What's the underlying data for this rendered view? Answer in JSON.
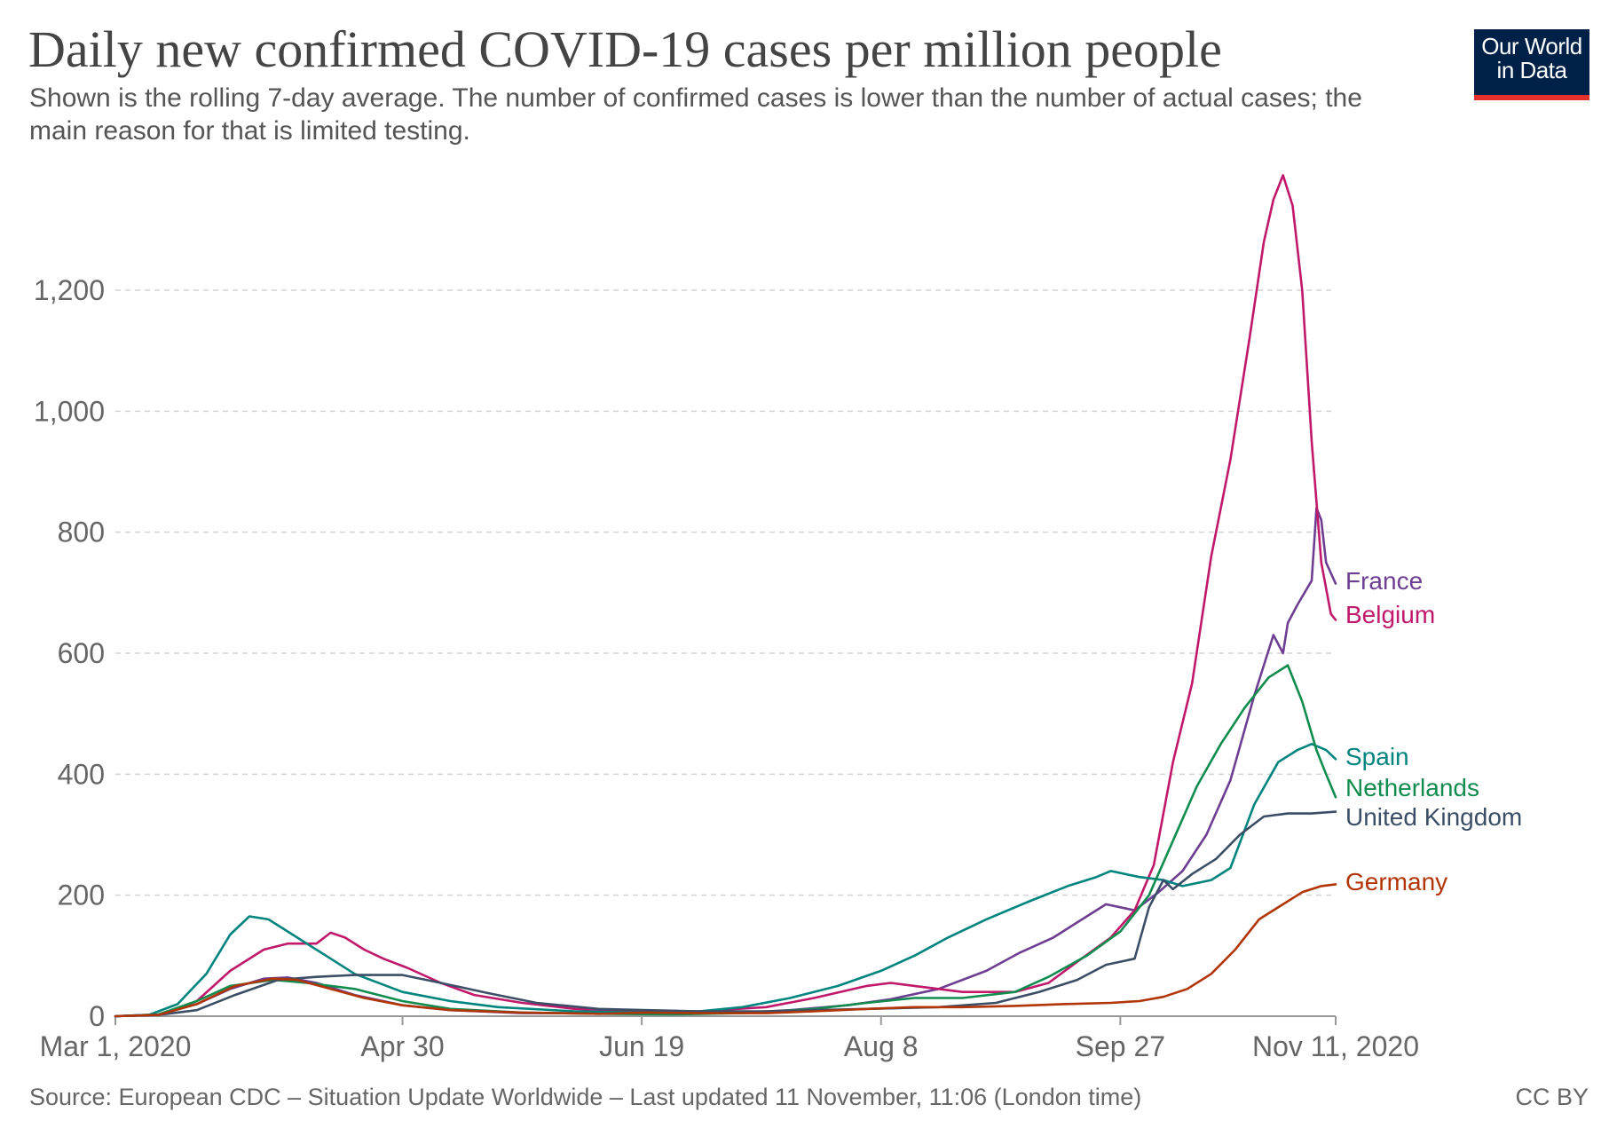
{
  "header": {
    "title": "Daily new confirmed COVID-19 cases per million people",
    "subtitle": "Shown is the rolling 7-day average. The number of confirmed cases is lower than the number of actual cases; the main reason for that is limited testing.",
    "logo_text": "Our World in Data"
  },
  "footer": {
    "source": "Source: European CDC – Situation Update Worldwide – Last updated 11 November, 11:06 (London time)",
    "license": "CC BY"
  },
  "colors": {
    "France": "#6d3e91",
    "Belgium": "#c0186a",
    "Spain": "#00847e",
    "Netherlands": "#118c4f",
    "United Kingdom": "#3c4e66",
    "Germany": "#b13507",
    "grid": "#d3d3d3",
    "axis": "#666666"
  },
  "chart_data": {
    "type": "line",
    "title": "Daily new confirmed COVID-19 cases per million people",
    "xlabel": "",
    "ylabel": "",
    "x_start": "2020-03-01",
    "x_end": "2020-11-11",
    "x_ticks": [
      "Mar 1, 2020",
      "Apr 30",
      "Jun 19",
      "Aug 8",
      "Sep 27",
      "Nov 11, 2020"
    ],
    "y_ticks": [
      "0",
      "200",
      "400",
      "600",
      "800",
      "1,000",
      "1,200"
    ],
    "ylim": [
      0,
      1400
    ],
    "grid": true,
    "legend": "inline labels at line ends (right)",
    "series": [
      {
        "name": "France",
        "points": [
          [
            "2020-03-01",
            0
          ],
          [
            "2020-03-10",
            3
          ],
          [
            "2020-03-18",
            20
          ],
          [
            "2020-03-25",
            45
          ],
          [
            "2020-04-01",
            62
          ],
          [
            "2020-04-06",
            64
          ],
          [
            "2020-04-12",
            55
          ],
          [
            "2020-04-20",
            35
          ],
          [
            "2020-04-30",
            18
          ],
          [
            "2020-05-10",
            10
          ],
          [
            "2020-05-25",
            5
          ],
          [
            "2020-06-10",
            5
          ],
          [
            "2020-06-25",
            4
          ],
          [
            "2020-07-10",
            6
          ],
          [
            "2020-07-20",
            10
          ],
          [
            "2020-08-01",
            18
          ],
          [
            "2020-08-10",
            28
          ],
          [
            "2020-08-20",
            45
          ],
          [
            "2020-08-30",
            75
          ],
          [
            "2020-09-06",
            105
          ],
          [
            "2020-09-13",
            130
          ],
          [
            "2020-09-20",
            165
          ],
          [
            "2020-09-24",
            185
          ],
          [
            "2020-09-30",
            175
          ],
          [
            "2020-10-05",
            205
          ],
          [
            "2020-10-10",
            240
          ],
          [
            "2020-10-15",
            300
          ],
          [
            "2020-10-20",
            390
          ],
          [
            "2020-10-25",
            530
          ],
          [
            "2020-10-29",
            630
          ],
          [
            "2020-10-31",
            600
          ],
          [
            "2020-11-01",
            650
          ],
          [
            "2020-11-03",
            680
          ],
          [
            "2020-11-06",
            720
          ],
          [
            "2020-11-07",
            840
          ],
          [
            "2020-11-08",
            820
          ],
          [
            "2020-11-09",
            750
          ],
          [
            "2020-11-11",
            715
          ]
        ]
      },
      {
        "name": "Belgium",
        "points": [
          [
            "2020-03-01",
            0
          ],
          [
            "2020-03-10",
            2
          ],
          [
            "2020-03-18",
            25
          ],
          [
            "2020-03-25",
            75
          ],
          [
            "2020-04-01",
            110
          ],
          [
            "2020-04-06",
            120
          ],
          [
            "2020-04-12",
            120
          ],
          [
            "2020-04-15",
            138
          ],
          [
            "2020-04-18",
            130
          ],
          [
            "2020-04-22",
            110
          ],
          [
            "2020-04-26",
            95
          ],
          [
            "2020-05-01",
            80
          ],
          [
            "2020-05-08",
            55
          ],
          [
            "2020-05-15",
            35
          ],
          [
            "2020-05-25",
            22
          ],
          [
            "2020-06-05",
            12
          ],
          [
            "2020-06-20",
            8
          ],
          [
            "2020-07-01",
            8
          ],
          [
            "2020-07-15",
            15
          ],
          [
            "2020-07-25",
            30
          ],
          [
            "2020-08-05",
            50
          ],
          [
            "2020-08-10",
            55
          ],
          [
            "2020-08-15",
            50
          ],
          [
            "2020-08-25",
            40
          ],
          [
            "2020-09-05",
            40
          ],
          [
            "2020-09-12",
            55
          ],
          [
            "2020-09-18",
            90
          ],
          [
            "2020-09-25",
            130
          ],
          [
            "2020-09-30",
            175
          ],
          [
            "2020-10-04",
            250
          ],
          [
            "2020-10-08",
            420
          ],
          [
            "2020-10-12",
            550
          ],
          [
            "2020-10-16",
            760
          ],
          [
            "2020-10-20",
            920
          ],
          [
            "2020-10-24",
            1120
          ],
          [
            "2020-10-27",
            1280
          ],
          [
            "2020-10-29",
            1350
          ],
          [
            "2020-10-31",
            1390
          ],
          [
            "2020-11-02",
            1340
          ],
          [
            "2020-11-04",
            1200
          ],
          [
            "2020-11-06",
            950
          ],
          [
            "2020-11-08",
            750
          ],
          [
            "2020-11-10",
            665
          ],
          [
            "2020-11-11",
            655
          ]
        ]
      },
      {
        "name": "Spain",
        "points": [
          [
            "2020-03-01",
            0
          ],
          [
            "2020-03-08",
            2
          ],
          [
            "2020-03-14",
            20
          ],
          [
            "2020-03-20",
            70
          ],
          [
            "2020-03-25",
            135
          ],
          [
            "2020-03-29",
            165
          ],
          [
            "2020-04-02",
            160
          ],
          [
            "2020-04-08",
            130
          ],
          [
            "2020-04-14",
            100
          ],
          [
            "2020-04-20",
            70
          ],
          [
            "2020-04-30",
            40
          ],
          [
            "2020-05-10",
            25
          ],
          [
            "2020-05-20",
            15
          ],
          [
            "2020-06-05",
            8
          ],
          [
            "2020-06-20",
            6
          ],
          [
            "2020-07-01",
            8
          ],
          [
            "2020-07-10",
            15
          ],
          [
            "2020-07-20",
            30
          ],
          [
            "2020-07-30",
            50
          ],
          [
            "2020-08-08",
            75
          ],
          [
            "2020-08-15",
            100
          ],
          [
            "2020-08-22",
            130
          ],
          [
            "2020-08-30",
            160
          ],
          [
            "2020-09-08",
            190
          ],
          [
            "2020-09-16",
            215
          ],
          [
            "2020-09-22",
            230
          ],
          [
            "2020-09-25",
            240
          ],
          [
            "2020-10-01",
            230
          ],
          [
            "2020-10-06",
            225
          ],
          [
            "2020-10-10",
            215
          ],
          [
            "2020-10-16",
            225
          ],
          [
            "2020-10-20",
            245
          ],
          [
            "2020-10-25",
            350
          ],
          [
            "2020-10-30",
            420
          ],
          [
            "2020-11-03",
            440
          ],
          [
            "2020-11-06",
            450
          ],
          [
            "2020-11-09",
            440
          ],
          [
            "2020-11-11",
            425
          ]
        ]
      },
      {
        "name": "Netherlands",
        "points": [
          [
            "2020-03-01",
            0
          ],
          [
            "2020-03-10",
            3
          ],
          [
            "2020-03-18",
            25
          ],
          [
            "2020-03-25",
            50
          ],
          [
            "2020-04-03",
            60
          ],
          [
            "2020-04-10",
            55
          ],
          [
            "2020-04-20",
            45
          ],
          [
            "2020-04-30",
            25
          ],
          [
            "2020-05-10",
            12
          ],
          [
            "2020-05-25",
            6
          ],
          [
            "2020-06-10",
            4
          ],
          [
            "2020-06-25",
            3
          ],
          [
            "2020-07-10",
            5
          ],
          [
            "2020-07-25",
            12
          ],
          [
            "2020-08-05",
            22
          ],
          [
            "2020-08-15",
            30
          ],
          [
            "2020-08-25",
            30
          ],
          [
            "2020-09-05",
            40
          ],
          [
            "2020-09-12",
            65
          ],
          [
            "2020-09-20",
            100
          ],
          [
            "2020-09-27",
            140
          ],
          [
            "2020-10-03",
            200
          ],
          [
            "2020-10-08",
            290
          ],
          [
            "2020-10-13",
            380
          ],
          [
            "2020-10-18",
            450
          ],
          [
            "2020-10-23",
            510
          ],
          [
            "2020-10-28",
            560
          ],
          [
            "2020-11-01",
            580
          ],
          [
            "2020-11-04",
            520
          ],
          [
            "2020-11-07",
            440
          ],
          [
            "2020-11-09",
            400
          ],
          [
            "2020-11-11",
            362
          ]
        ]
      },
      {
        "name": "United Kingdom",
        "points": [
          [
            "2020-03-01",
            0
          ],
          [
            "2020-03-10",
            2
          ],
          [
            "2020-03-18",
            10
          ],
          [
            "2020-03-26",
            35
          ],
          [
            "2020-04-04",
            60
          ],
          [
            "2020-04-12",
            65
          ],
          [
            "2020-04-20",
            68
          ],
          [
            "2020-04-30",
            68
          ],
          [
            "2020-05-08",
            55
          ],
          [
            "2020-05-18",
            38
          ],
          [
            "2020-05-28",
            22
          ],
          [
            "2020-06-10",
            12
          ],
          [
            "2020-06-20",
            10
          ],
          [
            "2020-07-01",
            8
          ],
          [
            "2020-07-15",
            8
          ],
          [
            "2020-07-25",
            10
          ],
          [
            "2020-08-05",
            12
          ],
          [
            "2020-08-20",
            15
          ],
          [
            "2020-09-01",
            22
          ],
          [
            "2020-09-10",
            40
          ],
          [
            "2020-09-18",
            60
          ],
          [
            "2020-09-24",
            85
          ],
          [
            "2020-09-30",
            95
          ],
          [
            "2020-10-03",
            180
          ],
          [
            "2020-10-06",
            225
          ],
          [
            "2020-10-08",
            210
          ],
          [
            "2020-10-12",
            235
          ],
          [
            "2020-10-17",
            260
          ],
          [
            "2020-10-22",
            300
          ],
          [
            "2020-10-27",
            330
          ],
          [
            "2020-11-01",
            335
          ],
          [
            "2020-11-06",
            335
          ],
          [
            "2020-11-11",
            338
          ]
        ]
      },
      {
        "name": "Germany",
        "points": [
          [
            "2020-03-01",
            0
          ],
          [
            "2020-03-10",
            2
          ],
          [
            "2020-03-18",
            20
          ],
          [
            "2020-03-26",
            50
          ],
          [
            "2020-04-03",
            62
          ],
          [
            "2020-04-08",
            60
          ],
          [
            "2020-04-15",
            45
          ],
          [
            "2020-04-22",
            30
          ],
          [
            "2020-04-30",
            18
          ],
          [
            "2020-05-10",
            10
          ],
          [
            "2020-05-25",
            6
          ],
          [
            "2020-06-10",
            4
          ],
          [
            "2020-06-20",
            6
          ],
          [
            "2020-07-01",
            5
          ],
          [
            "2020-07-15",
            5
          ],
          [
            "2020-07-25",
            8
          ],
          [
            "2020-08-05",
            12
          ],
          [
            "2020-08-15",
            15
          ],
          [
            "2020-08-25",
            15
          ],
          [
            "2020-09-05",
            17
          ],
          [
            "2020-09-15",
            20
          ],
          [
            "2020-09-25",
            22
          ],
          [
            "2020-10-01",
            25
          ],
          [
            "2020-10-06",
            32
          ],
          [
            "2020-10-11",
            45
          ],
          [
            "2020-10-16",
            70
          ],
          [
            "2020-10-21",
            110
          ],
          [
            "2020-10-26",
            160
          ],
          [
            "2020-10-31",
            185
          ],
          [
            "2020-11-04",
            205
          ],
          [
            "2020-11-08",
            215
          ],
          [
            "2020-11-11",
            218
          ]
        ]
      }
    ]
  }
}
